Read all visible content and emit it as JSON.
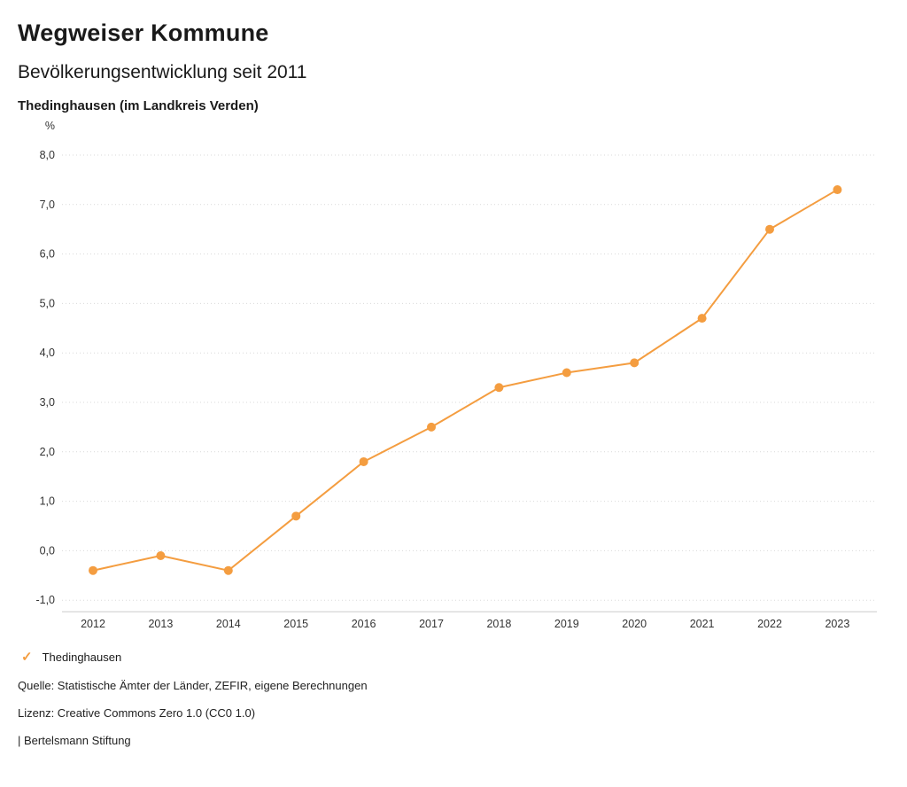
{
  "header": {
    "brand": "Wegweiser Kommune",
    "title": "Bevölkerungsentwicklung seit 2011",
    "subtitle": "Thedinghausen (im Landkreis Verden)"
  },
  "chart_data": {
    "type": "line",
    "title": "Bevölkerungsentwicklung seit 2011",
    "unit_label": "%",
    "categories": [
      "2012",
      "2013",
      "2014",
      "2015",
      "2016",
      "2017",
      "2018",
      "2019",
      "2020",
      "2021",
      "2022",
      "2023"
    ],
    "series": [
      {
        "name": "Thedinghausen",
        "color": "#f49d40",
        "values": [
          -0.4,
          -0.1,
          -0.4,
          0.7,
          1.8,
          2.5,
          3.3,
          3.6,
          3.8,
          4.7,
          6.5,
          7.3
        ]
      }
    ],
    "ylim": [
      -1.0,
      8.0
    ],
    "ytick_step": 1.0,
    "decimal_separator": ",",
    "grid": "horizontal-dotted",
    "legend_position": "bottom-left"
  },
  "legend": {
    "items": [
      {
        "label": "Thedinghausen",
        "icon": "check-icon",
        "glyph": "✓"
      }
    ]
  },
  "footer": {
    "source": "Quelle: Statistische Ämter der Länder, ZEFIR, eigene Berechnungen",
    "license": "Lizenz: Creative Commons Zero 1.0 (CC0 1.0)",
    "attribution": "| Bertelsmann Stiftung"
  }
}
